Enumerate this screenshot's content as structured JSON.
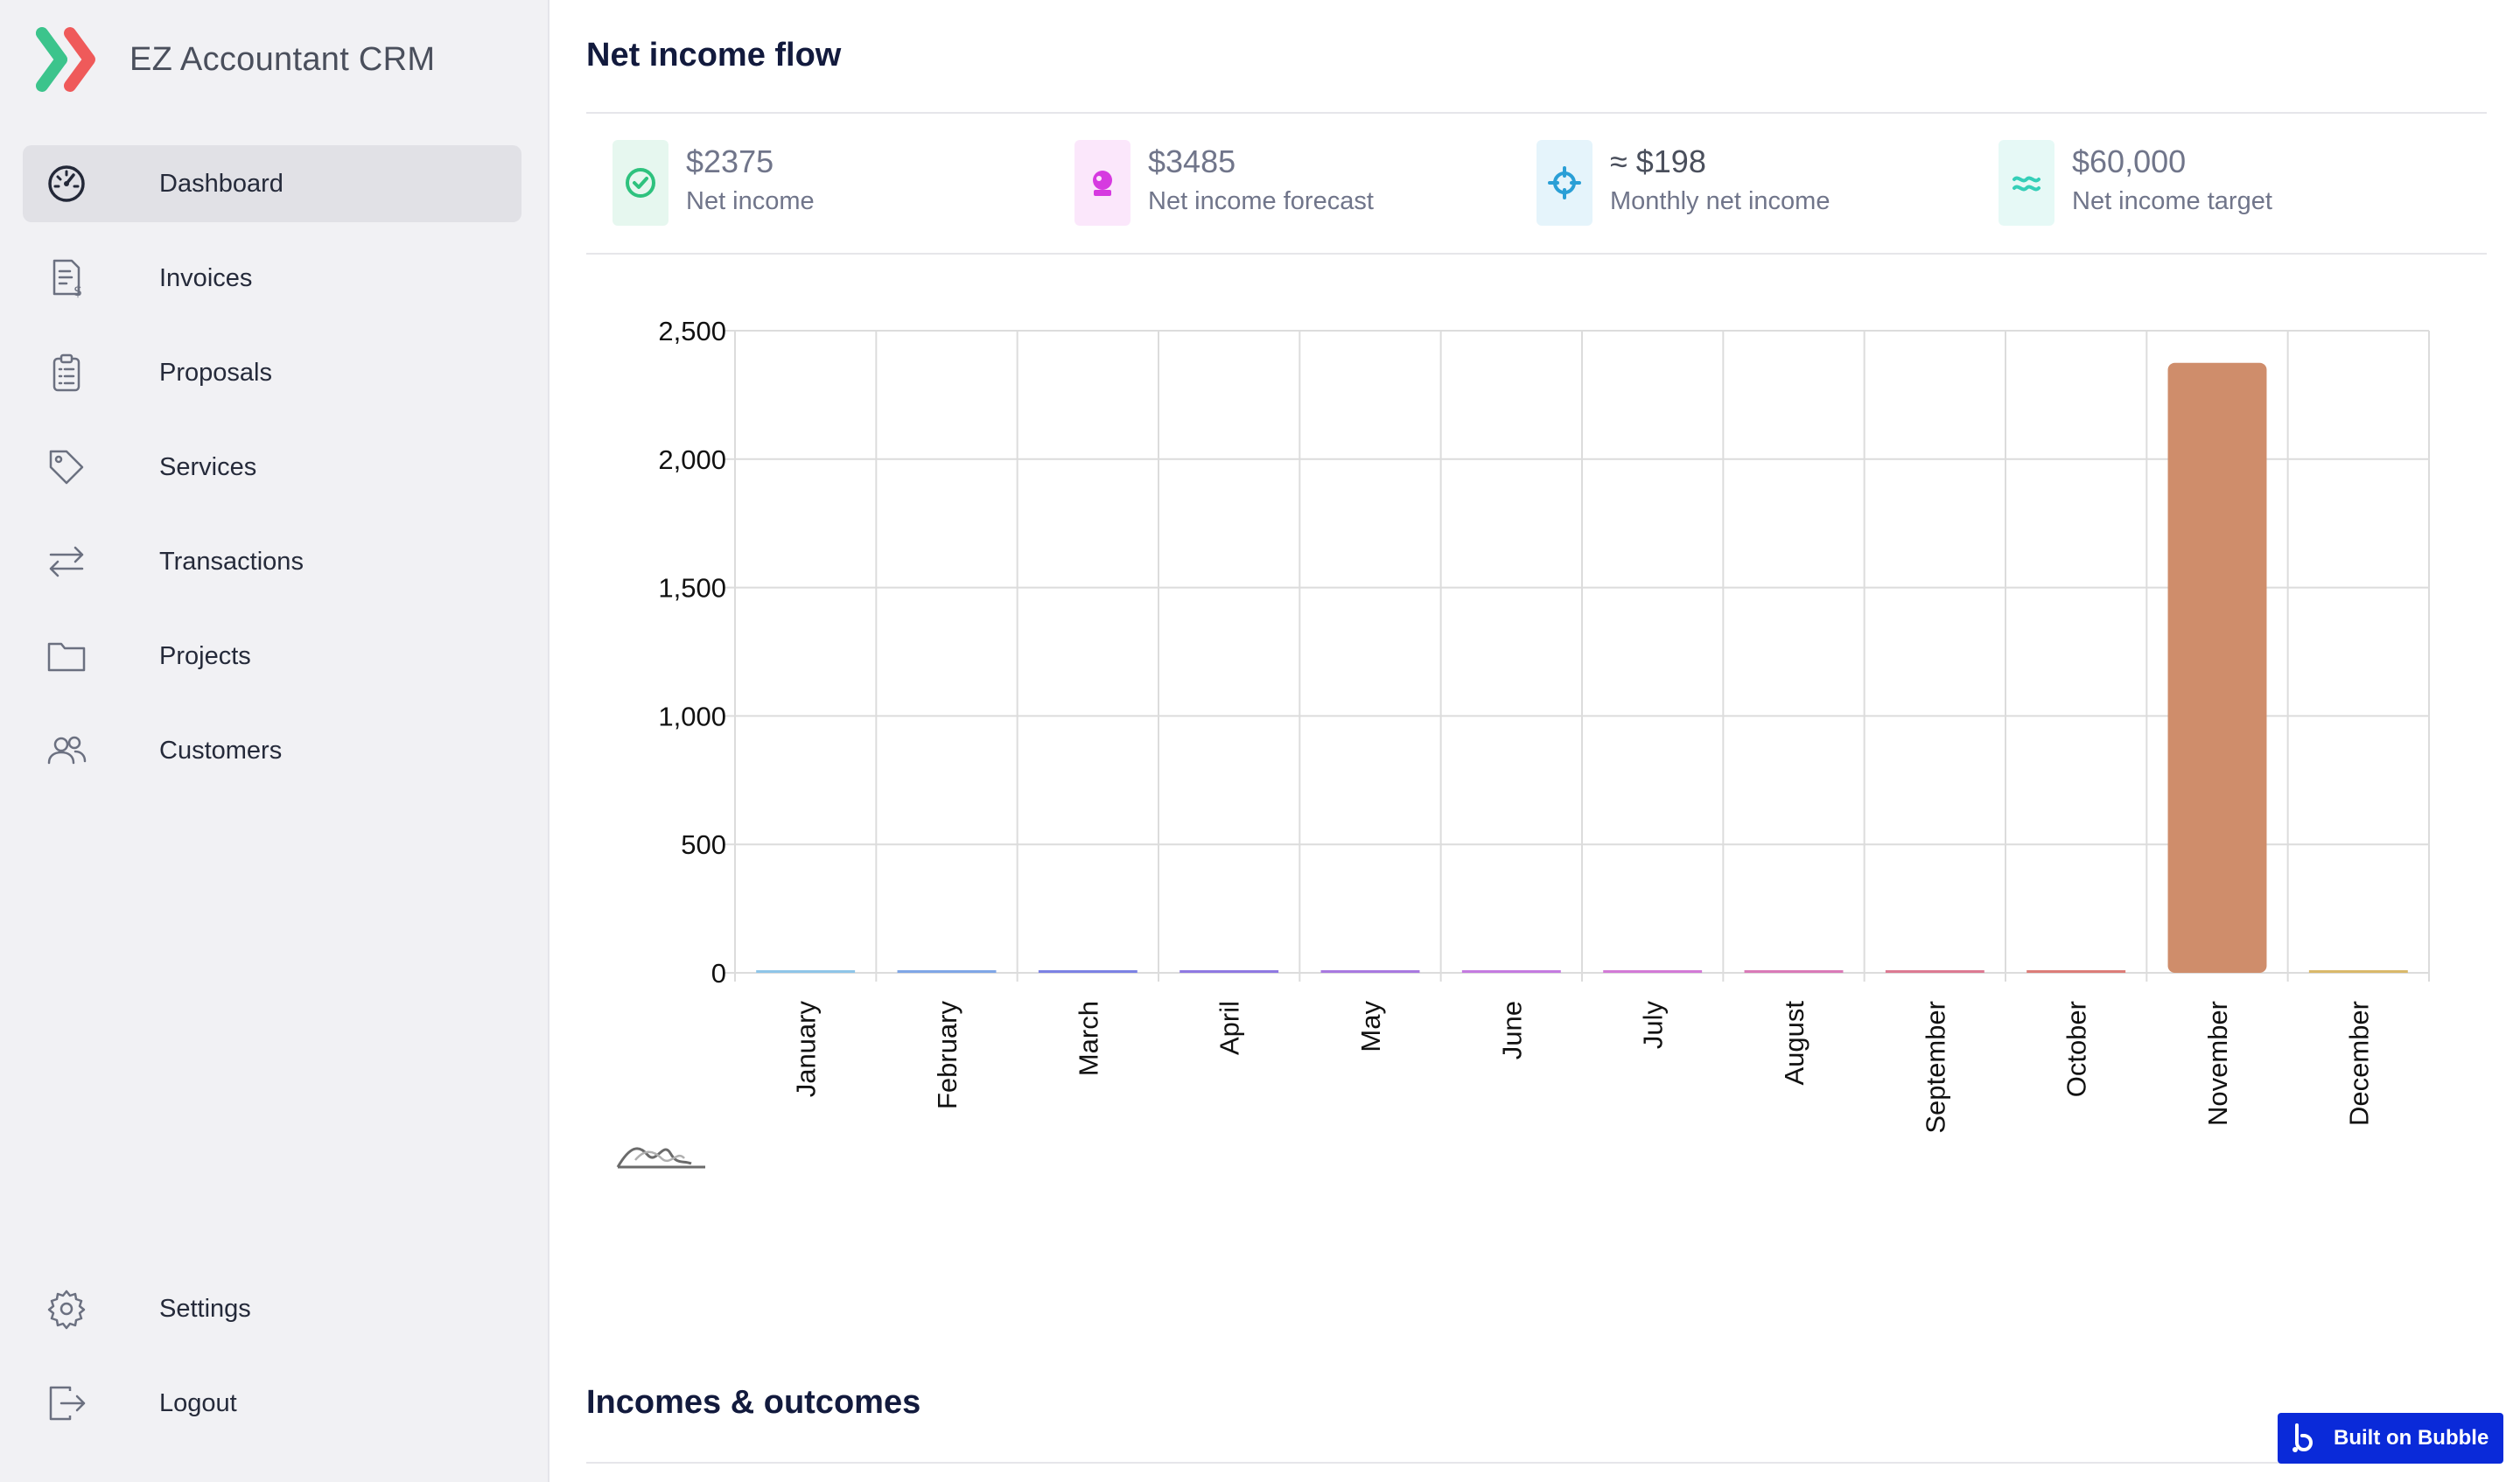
{
  "app": {
    "name": "EZ Accountant CRM",
    "logo_icon": "chevrons-right-logo"
  },
  "sidebar": {
    "items": [
      {
        "label": "Dashboard",
        "icon": "dashboard-gauge-icon",
        "active": true
      },
      {
        "label": "Invoices",
        "icon": "invoice-icon"
      },
      {
        "label": "Proposals",
        "icon": "clipboard-icon"
      },
      {
        "label": "Services",
        "icon": "tag-icon"
      },
      {
        "label": "Transactions",
        "icon": "arrows-exchange-icon"
      },
      {
        "label": "Projects",
        "icon": "folder-icon"
      },
      {
        "label": "Customers",
        "icon": "users-icon"
      }
    ],
    "bottom_items": [
      {
        "label": "Settings",
        "icon": "gear-icon"
      },
      {
        "label": "Logout",
        "icon": "logout-icon"
      }
    ]
  },
  "net_income_flow": {
    "title": "Net income flow",
    "kpis": [
      {
        "value": "$2375",
        "label": "Net income",
        "icon": "check-circle-icon",
        "color": "#2ec27e",
        "bg": "#e6f7ef"
      },
      {
        "value": "$3485",
        "label": "Net income forecast",
        "icon": "crystal-ball-icon",
        "color": "#d63ae0",
        "bg": "#fbe7fb"
      },
      {
        "value": "≈ $198",
        "label": "Monthly net income",
        "icon": "crosshair-icon",
        "color": "#2a9fd6",
        "bg": "#e5f4fb"
      },
      {
        "value": "$60,000",
        "label": "Net income target",
        "icon": "waves-icon",
        "color": "#35cfb8",
        "bg": "#e6f9f6"
      }
    ]
  },
  "chart_data": {
    "type": "bar",
    "categories": [
      "January",
      "February",
      "March",
      "April",
      "May",
      "June",
      "July",
      "August",
      "September",
      "October",
      "November",
      "December"
    ],
    "values": [
      0,
      0,
      0,
      0,
      0,
      0,
      0,
      0,
      0,
      0,
      2375,
      0
    ],
    "bar_colors": [
      "#8ec5e8",
      "#7fa6e6",
      "#7c82e4",
      "#8f79e2",
      "#a879e0",
      "#c47be0",
      "#d27ad6",
      "#d97ab7",
      "#dc7a92",
      "#dc7d78",
      "#cf8d6b",
      "#d9b86a"
    ],
    "y_ticks": [
      "0",
      "500",
      "1,000",
      "1,500",
      "2,000",
      "2,500"
    ],
    "ylim": [
      0,
      2500
    ],
    "title": "",
    "xlabel": "",
    "ylabel": "",
    "grid": true,
    "legend": "none"
  },
  "incomes_outcomes": {
    "title": "Incomes & outcomes"
  },
  "badge": {
    "label": "Built on Bubble",
    "icon": "bubble-logo-icon"
  }
}
